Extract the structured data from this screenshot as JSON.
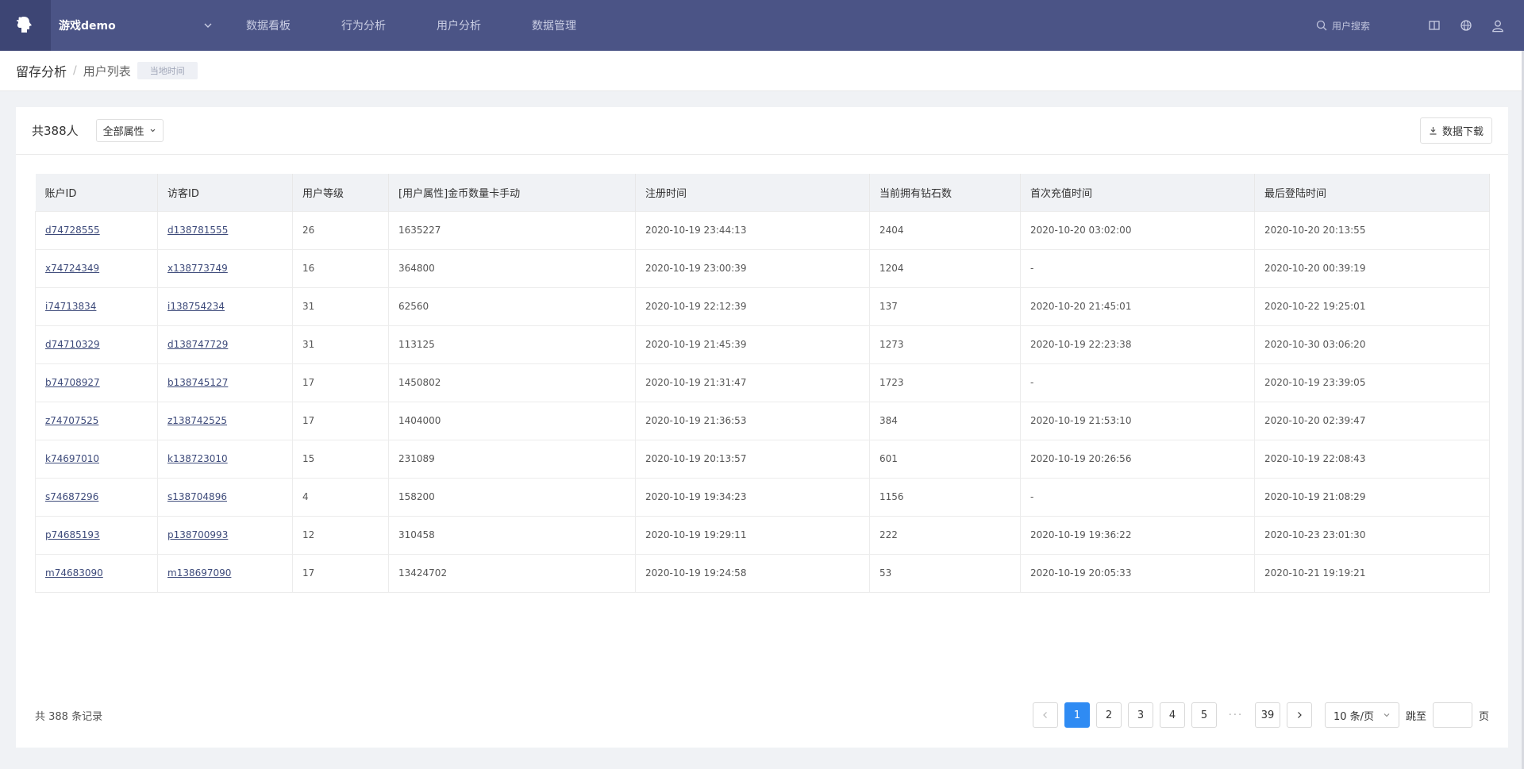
{
  "topnav": {
    "logo_icon": "brain-logo-icon",
    "project_name": "游戏demo",
    "menu": [
      "数据看板",
      "行为分析",
      "用户分析",
      "数据管理"
    ],
    "search_placeholder": "用户搜索",
    "icons": [
      "book-icon",
      "globe-icon",
      "user-icon"
    ]
  },
  "breadcrumb": {
    "parent": "留存分析",
    "separator": "/",
    "current": "用户列表",
    "time_tag": "当地时间"
  },
  "toolbar": {
    "total": "共388人",
    "attr_filter": "全部属性",
    "download": "数据下载"
  },
  "table": {
    "columns": [
      "账户ID",
      "访客ID",
      "用户等级",
      "[用户属性]金币数量卡手动",
      "注册时间",
      "当前拥有钻石数",
      "首次充值时间",
      "最后登陆时间"
    ],
    "rows": [
      [
        "d74728555",
        "d138781555",
        "26",
        "1635227",
        "2020-10-19 23:44:13",
        "2404",
        "2020-10-20 03:02:00",
        "2020-10-20 20:13:55"
      ],
      [
        "x74724349",
        "x138773749",
        "16",
        "364800",
        "2020-10-19 23:00:39",
        "1204",
        "-",
        "2020-10-20 00:39:19"
      ],
      [
        "i74713834",
        "i138754234",
        "31",
        "62560",
        "2020-10-19 22:12:39",
        "137",
        "2020-10-20 21:45:01",
        "2020-10-22 19:25:01"
      ],
      [
        "d74710329",
        "d138747729",
        "31",
        "113125",
        "2020-10-19 21:45:39",
        "1273",
        "2020-10-19 22:23:38",
        "2020-10-30 03:06:20"
      ],
      [
        "b74708927",
        "b138745127",
        "17",
        "1450802",
        "2020-10-19 21:31:47",
        "1723",
        "-",
        "2020-10-19 23:39:05"
      ],
      [
        "z74707525",
        "z138742525",
        "17",
        "1404000",
        "2020-10-19 21:36:53",
        "384",
        "2020-10-19 21:53:10",
        "2020-10-20 02:39:47"
      ],
      [
        "k74697010",
        "k138723010",
        "15",
        "231089",
        "2020-10-19 20:13:57",
        "601",
        "2020-10-19 20:26:56",
        "2020-10-19 22:08:43"
      ],
      [
        "s74687296",
        "s138704896",
        "4",
        "158200",
        "2020-10-19 19:34:23",
        "1156",
        "-",
        "2020-10-19 21:08:29"
      ],
      [
        "p74685193",
        "p138700993",
        "12",
        "310458",
        "2020-10-19 19:29:11",
        "222",
        "2020-10-19 19:36:22",
        "2020-10-23 23:01:30"
      ],
      [
        "m74683090",
        "m138697090",
        "17",
        "13424702",
        "2020-10-19 19:24:58",
        "53",
        "2020-10-19 20:05:33",
        "2020-10-21 19:19:21"
      ]
    ]
  },
  "footer": {
    "records": "共 388 条记录",
    "pages": [
      "1",
      "2",
      "3",
      "4",
      "5"
    ],
    "ellipsis": "···",
    "last_page": "39",
    "current_page": "1",
    "page_size": "10 条/页",
    "jump_label": "跳至",
    "jump_value": "",
    "page_suffix": "页"
  },
  "colors": {
    "nav_bg": "#4b5486",
    "accent": "#2f8bf3",
    "link": "#3d4a7a"
  }
}
